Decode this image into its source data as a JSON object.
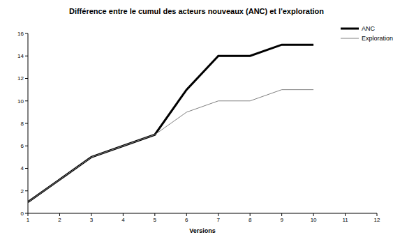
{
  "chart_data": {
    "type": "line",
    "title": "Différence entre le cumul des acteurs nouveaux (ANC) et l'exploration",
    "x_label": "Versions",
    "x": [
      1,
      2,
      3,
      4,
      5,
      6,
      7,
      8,
      9,
      10
    ],
    "series": [
      {
        "name": "ANC",
        "color": "#000000",
        "values": [
          1,
          3,
          5,
          6,
          7,
          11,
          14,
          14,
          15,
          15
        ],
        "marker": "none",
        "line_style": "solid"
      },
      {
        "name": "Exploration",
        "color": "#808080",
        "values": [
          1,
          3,
          5,
          6,
          7,
          9,
          10,
          10,
          11,
          11
        ],
        "marker": "none",
        "line_style": "solid"
      }
    ],
    "xlim": [
      1,
      12
    ],
    "xticks": [
      1,
      2,
      3,
      4,
      5,
      6,
      7,
      8,
      9,
      10,
      11,
      12
    ],
    "ylim": [
      0,
      16
    ],
    "yticks": [
      0,
      2,
      4,
      6,
      8,
      10,
      12,
      14,
      16
    ],
    "grid": false,
    "legend": "upper right"
  }
}
